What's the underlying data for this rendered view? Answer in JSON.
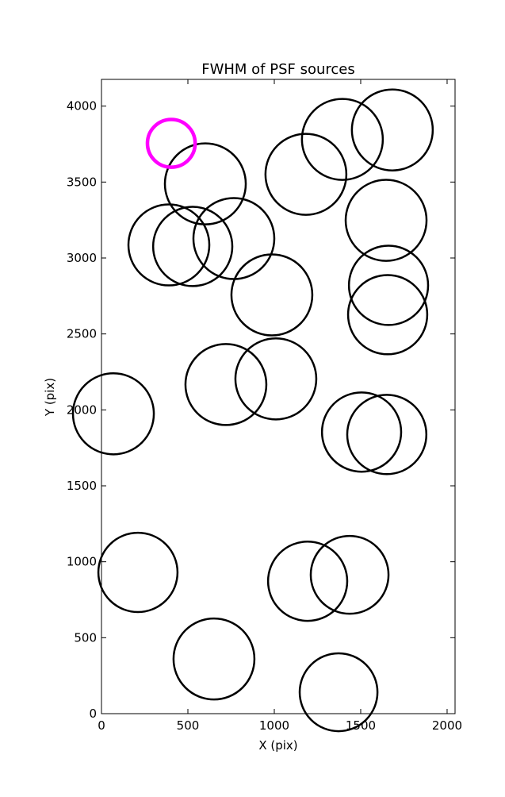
{
  "chart_data": {
    "type": "scatter",
    "title": "FWHM of PSF sources",
    "xlabel": "X (pix)",
    "ylabel": "Y (pix)",
    "xlim": [
      0,
      2046
    ],
    "ylim": [
      0,
      4176
    ],
    "xticks": [
      0,
      500,
      1000,
      1500,
      2000
    ],
    "yticks": [
      0,
      500,
      1000,
      1500,
      2000,
      2500,
      3000,
      3500,
      4000
    ],
    "series": [
      {
        "color": "#000000",
        "x": [
          601,
          390,
          528,
          766,
          986,
          1183,
          1394,
          1683,
          1647,
          1661,
          1656,
          69,
          720,
          1009,
          1505,
          1651,
          211,
          1193,
          1436,
          651,
          1372
        ],
        "values": [
          3488,
          3086,
          3076,
          3128,
          2757,
          3551,
          3781,
          3843,
          3248,
          2820,
          2627,
          1974,
          2167,
          2204,
          1854,
          1838,
          930,
          872,
          914,
          360,
          141
        ],
        "sizes": [
          234,
          234,
          229,
          234,
          234,
          234,
          234,
          234,
          234,
          229,
          229,
          234,
          234,
          234,
          229,
          229,
          229,
          229,
          225,
          234,
          225
        ]
      },
      {
        "color": "#ff00ff",
        "x": [
          404
        ],
        "values": [
          3755
        ],
        "sizes": [
          138
        ]
      }
    ]
  }
}
